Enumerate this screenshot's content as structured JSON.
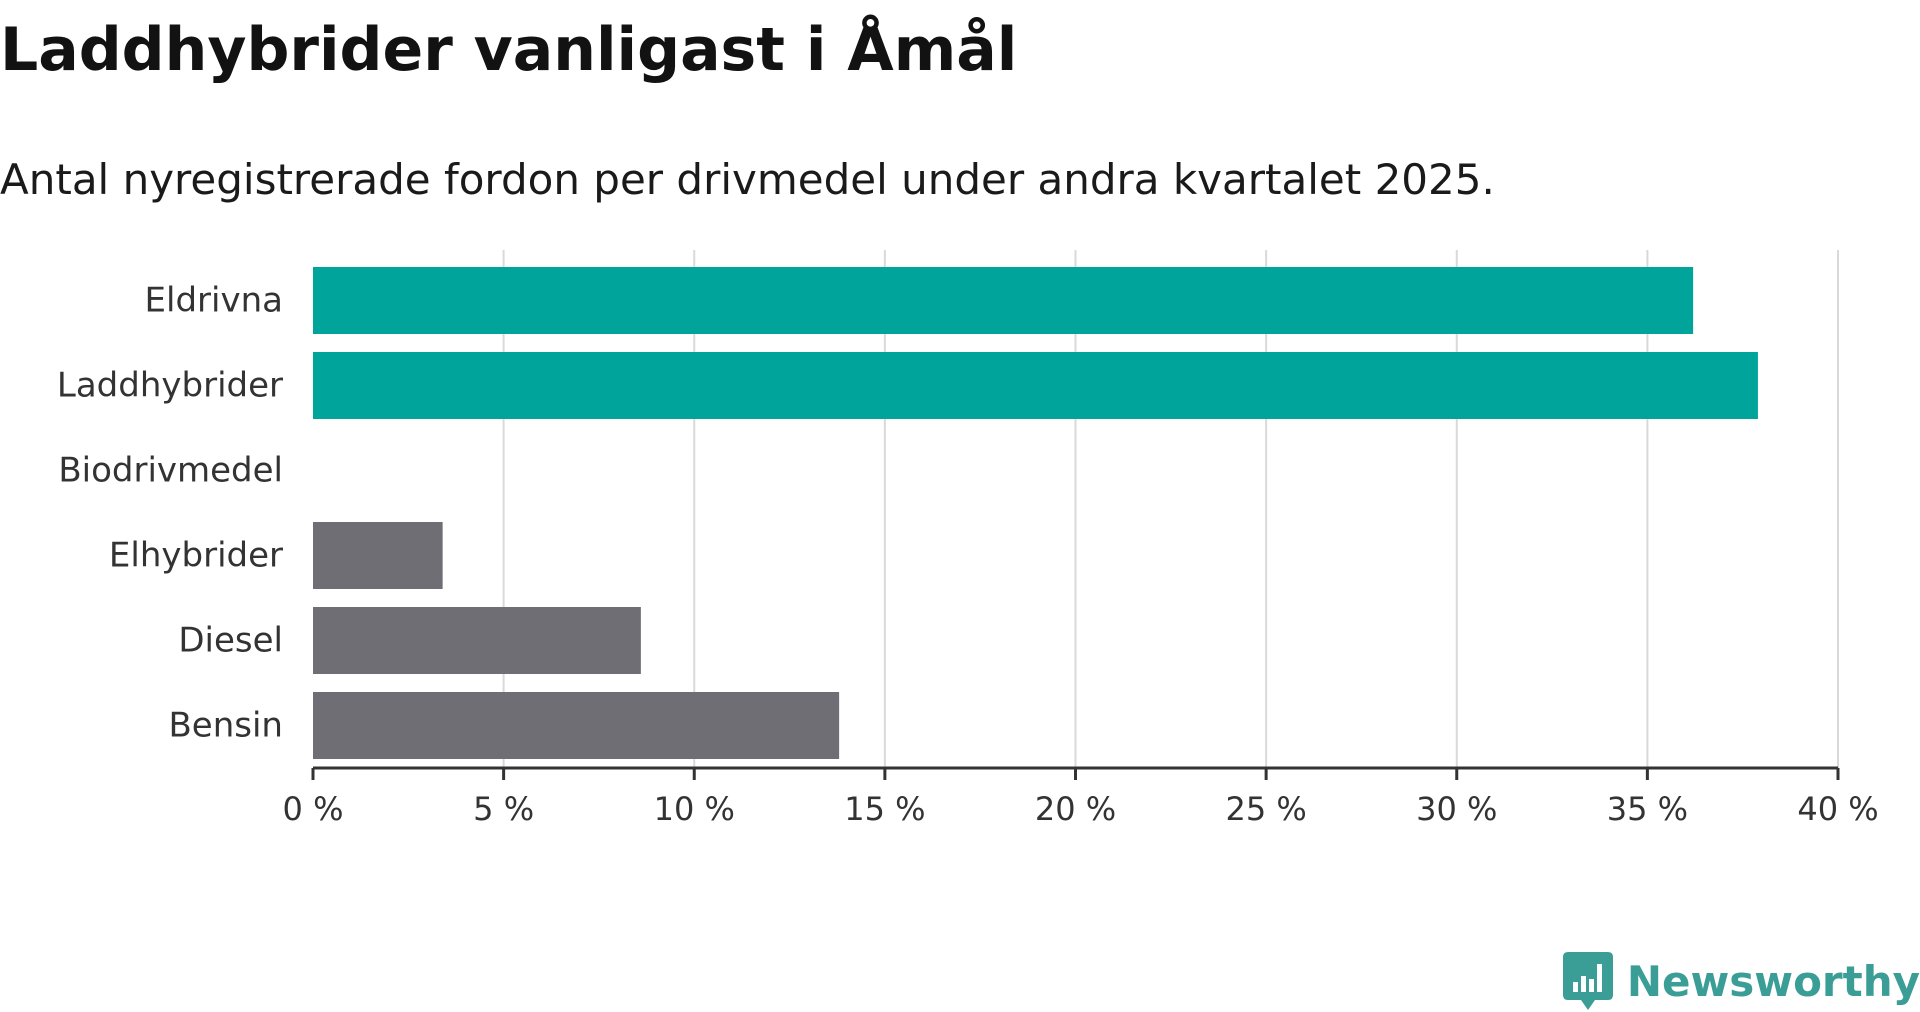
{
  "header": {
    "title": "Laddhybrider vanligast i Åmål",
    "subtitle": "Antal nyregistrerade fordon per drivmedel under andra kvartalet 2025."
  },
  "chart_data": {
    "type": "bar",
    "orientation": "horizontal",
    "categories": [
      "Eldrivna",
      "Laddhybrider",
      "Biodrivmedel",
      "Elhybrider",
      "Diesel",
      "Bensin"
    ],
    "values": [
      36.2,
      37.9,
      0,
      3.4,
      8.6,
      13.8
    ],
    "unit": "%",
    "xlim": [
      0,
      40
    ],
    "ticks": [
      0,
      5,
      10,
      15,
      20,
      25,
      30,
      35,
      40
    ],
    "tick_labels": [
      "0 %",
      "5 %",
      "10 %",
      "15 %",
      "20 %",
      "25 %",
      "30 %",
      "35 %",
      "40 %"
    ],
    "grid": "vertical",
    "legend": "none",
    "bar_colors": [
      "#00A49A",
      "#00A49A",
      "#00A49A",
      "#6E6E74",
      "#6E6E74",
      "#6E6E74"
    ],
    "gridline_color": "#D9D9D9",
    "axis_color": "#333333"
  },
  "logo": {
    "text": "Newsworthy",
    "icon": "newsworthy-logo-icon",
    "color": "#3A9E96"
  }
}
